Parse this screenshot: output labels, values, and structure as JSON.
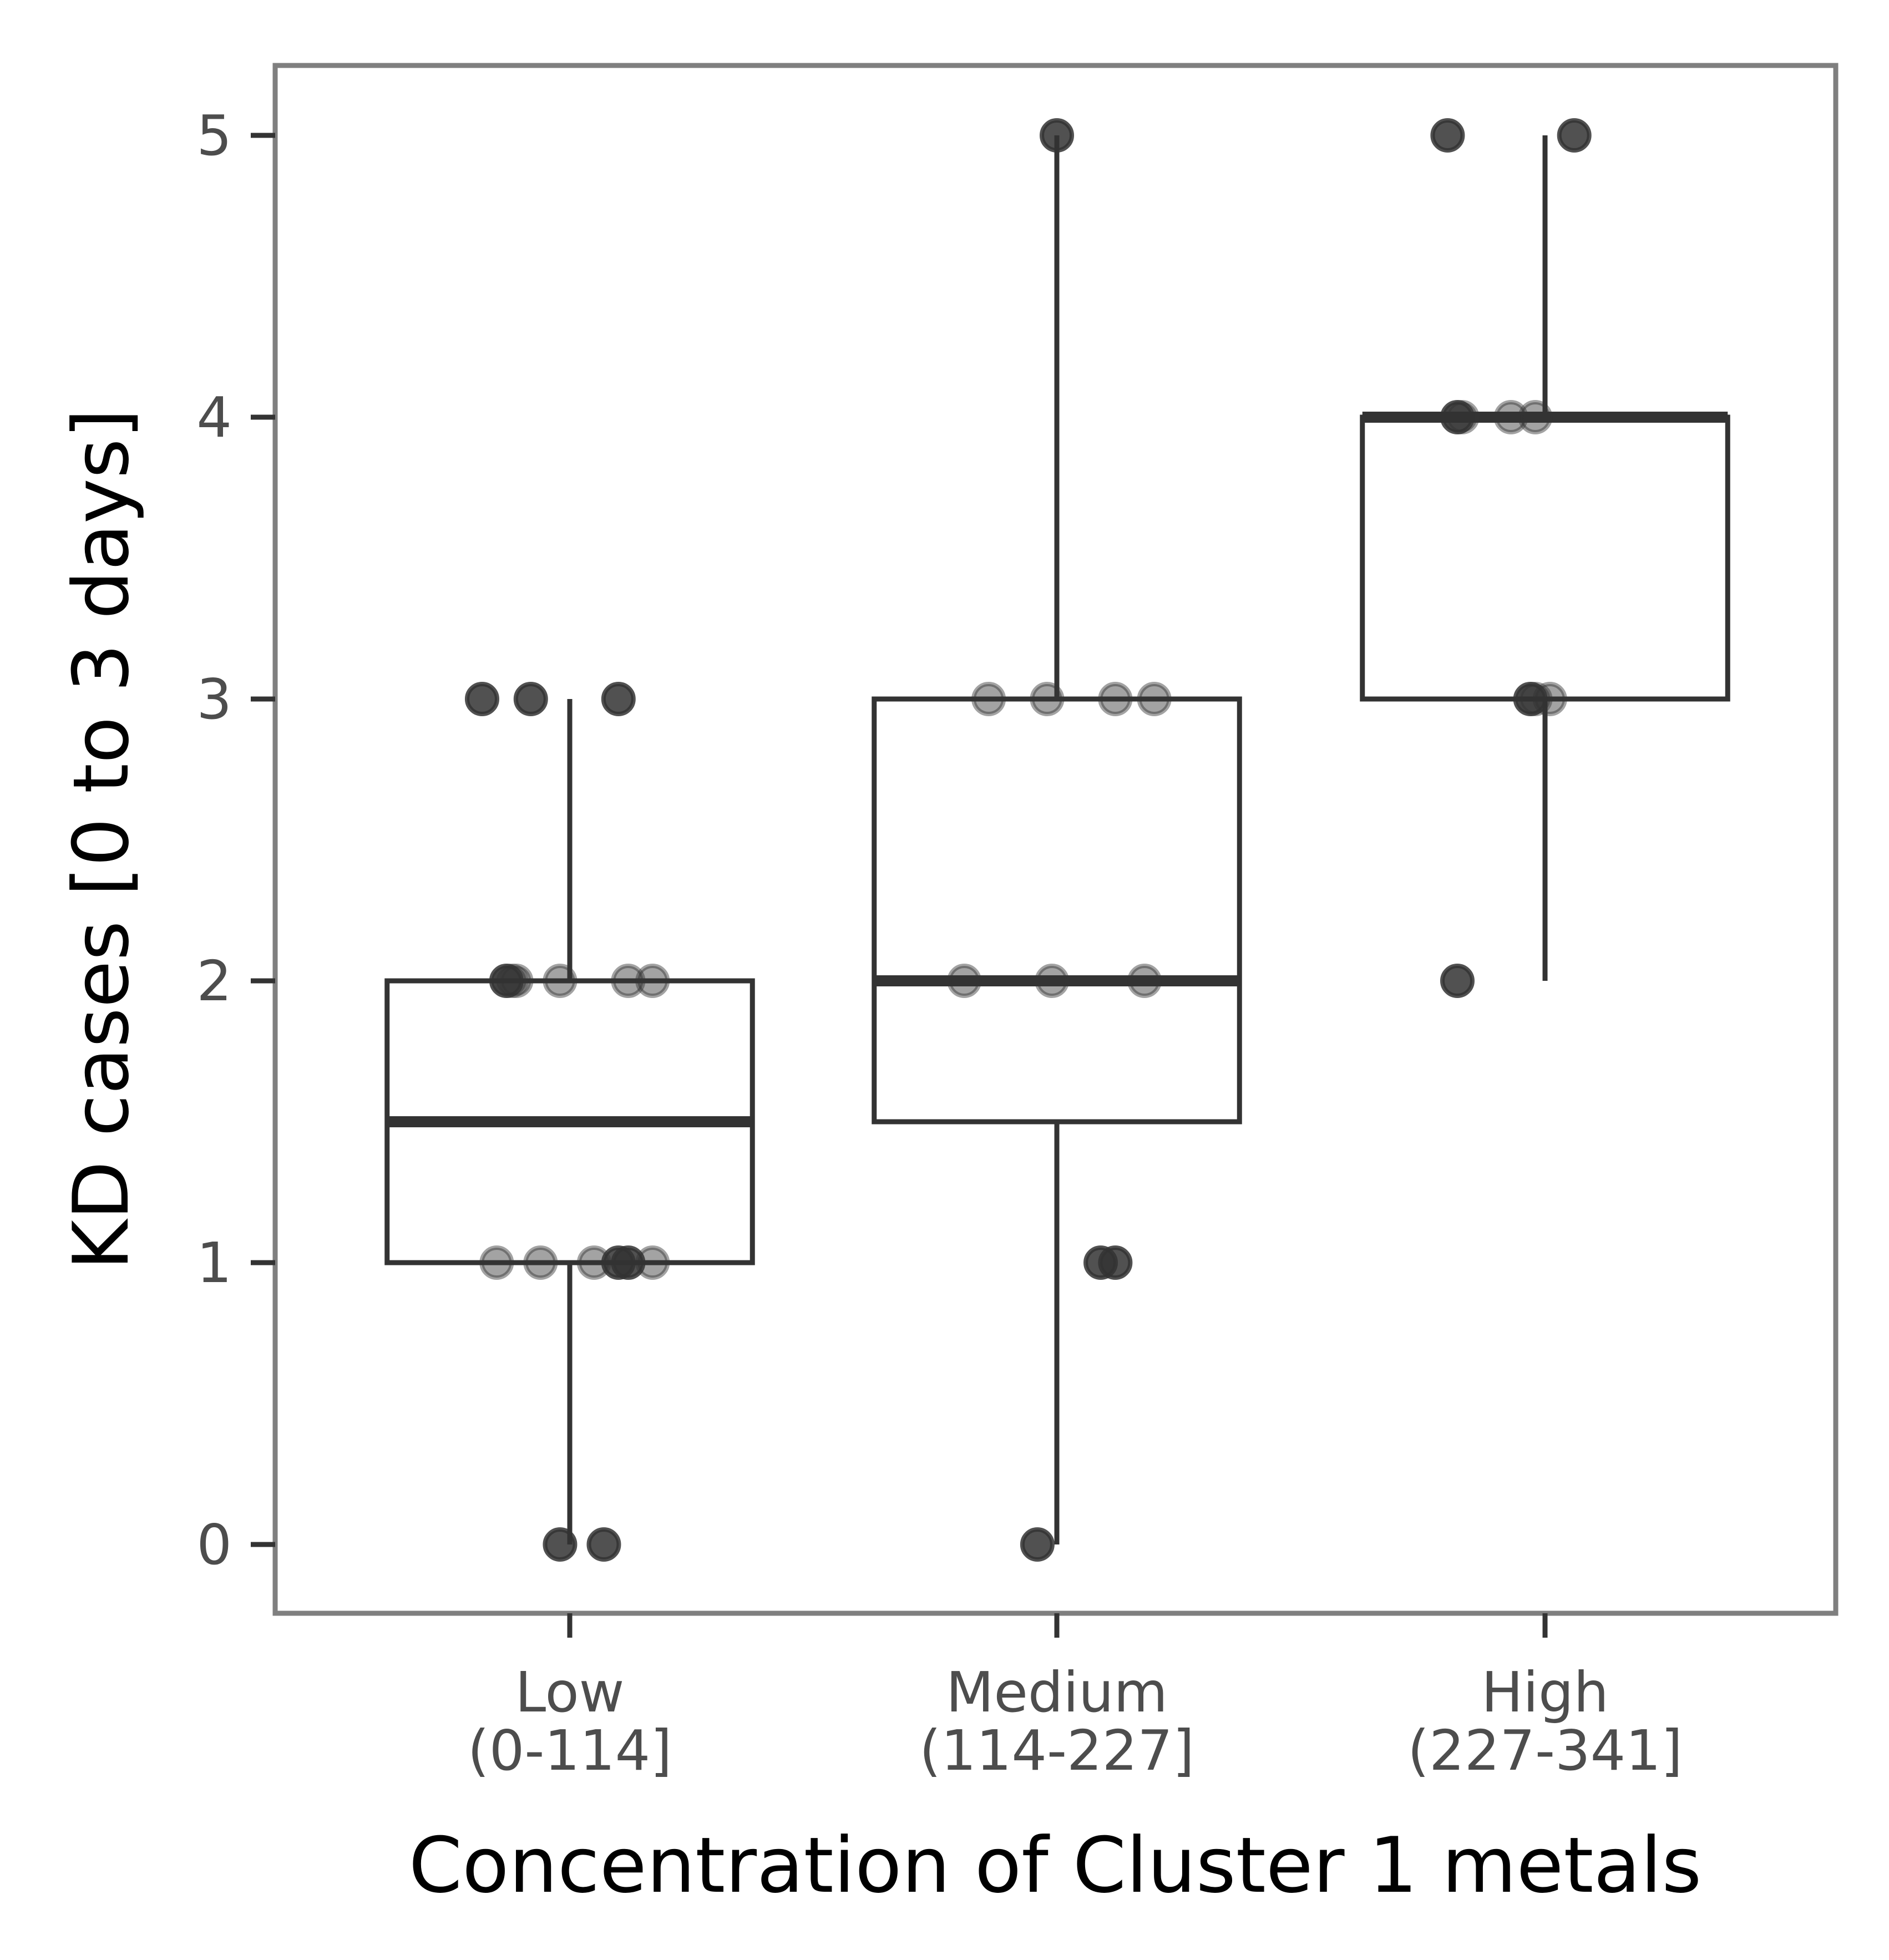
{
  "chart_data": {
    "type": "box",
    "title": "",
    "xlabel": "Concentration of Cluster 1 metals",
    "ylabel": "KD cases [0 to 3 days]",
    "ylim": [
      -0.25,
      5.25
    ],
    "yticks": [
      0,
      1,
      2,
      3,
      4,
      5
    ],
    "ytick_labels": [
      "0",
      "1",
      "2",
      "3",
      "4",
      "5"
    ],
    "grid": false,
    "legend": "none",
    "colors": {
      "box": "#333333",
      "point": "#333333",
      "panel_border": "#7f7f7f",
      "tick_text": "#4d4d4d"
    },
    "categories": [
      {
        "label_line1": "Low",
        "label_line2": "(0-114]"
      },
      {
        "label_line1": "Medium",
        "label_line2": "(114-227]"
      },
      {
        "label_line1": "High",
        "label_line2": "(227-341]"
      }
    ],
    "boxes": [
      {
        "q1": 1,
        "median": 1.5,
        "q3": 2,
        "whisker_low": 0,
        "whisker_high": 3
      },
      {
        "q1": 1.5,
        "median": 2,
        "q3": 3,
        "whisker_low": 0,
        "whisker_high": 5
      },
      {
        "q1": 3,
        "median": 4,
        "q3": 4,
        "whisker_low": 2,
        "whisker_high": 5
      }
    ],
    "points": [
      [
        {
          "jitter": -0.18,
          "y": 3,
          "a": 0.85
        },
        {
          "jitter": -0.08,
          "y": 3,
          "a": 0.85
        },
        {
          "jitter": 0.1,
          "y": 3,
          "a": 0.85
        },
        {
          "jitter": -0.13,
          "y": 2,
          "a": 0.85
        },
        {
          "jitter": -0.12,
          "y": 2,
          "a": 0.45
        },
        {
          "jitter": -0.11,
          "y": 2,
          "a": 0.45
        },
        {
          "jitter": -0.02,
          "y": 2,
          "a": 0.45
        },
        {
          "jitter": 0.12,
          "y": 2,
          "a": 0.45
        },
        {
          "jitter": 0.17,
          "y": 2,
          "a": 0.45
        },
        {
          "jitter": -0.15,
          "y": 1,
          "a": 0.45
        },
        {
          "jitter": -0.06,
          "y": 1,
          "a": 0.45
        },
        {
          "jitter": 0.05,
          "y": 1,
          "a": 0.45
        },
        {
          "jitter": 0.1,
          "y": 1,
          "a": 0.85
        },
        {
          "jitter": 0.12,
          "y": 1,
          "a": 0.85
        },
        {
          "jitter": 0.17,
          "y": 1,
          "a": 0.45
        },
        {
          "jitter": -0.02,
          "y": 0,
          "a": 0.85
        },
        {
          "jitter": 0.07,
          "y": 0,
          "a": 0.85
        }
      ],
      [
        {
          "jitter": 0.0,
          "y": 5,
          "a": 0.85
        },
        {
          "jitter": -0.14,
          "y": 3,
          "a": 0.45
        },
        {
          "jitter": -0.02,
          "y": 3,
          "a": 0.45
        },
        {
          "jitter": 0.12,
          "y": 3,
          "a": 0.45
        },
        {
          "jitter": 0.2,
          "y": 3,
          "a": 0.45
        },
        {
          "jitter": -0.19,
          "y": 2,
          "a": 0.45
        },
        {
          "jitter": -0.01,
          "y": 2,
          "a": 0.45
        },
        {
          "jitter": 0.18,
          "y": 2,
          "a": 0.45
        },
        {
          "jitter": 0.09,
          "y": 1,
          "a": 0.85
        },
        {
          "jitter": 0.12,
          "y": 1,
          "a": 0.85
        },
        {
          "jitter": -0.04,
          "y": 0,
          "a": 0.85
        }
      ],
      [
        {
          "jitter": -0.2,
          "y": 5,
          "a": 0.85
        },
        {
          "jitter": 0.06,
          "y": 5,
          "a": 0.85
        },
        {
          "jitter": -0.18,
          "y": 4,
          "a": 0.85
        },
        {
          "jitter": -0.17,
          "y": 4,
          "a": 0.45
        },
        {
          "jitter": -0.07,
          "y": 4,
          "a": 0.45
        },
        {
          "jitter": -0.02,
          "y": 4,
          "a": 0.45
        },
        {
          "jitter": -0.03,
          "y": 3,
          "a": 0.85
        },
        {
          "jitter": -0.02,
          "y": 3,
          "a": 0.45
        },
        {
          "jitter": 0.01,
          "y": 3,
          "a": 0.45
        },
        {
          "jitter": -0.18,
          "y": 2,
          "a": 0.85
        }
      ]
    ]
  }
}
